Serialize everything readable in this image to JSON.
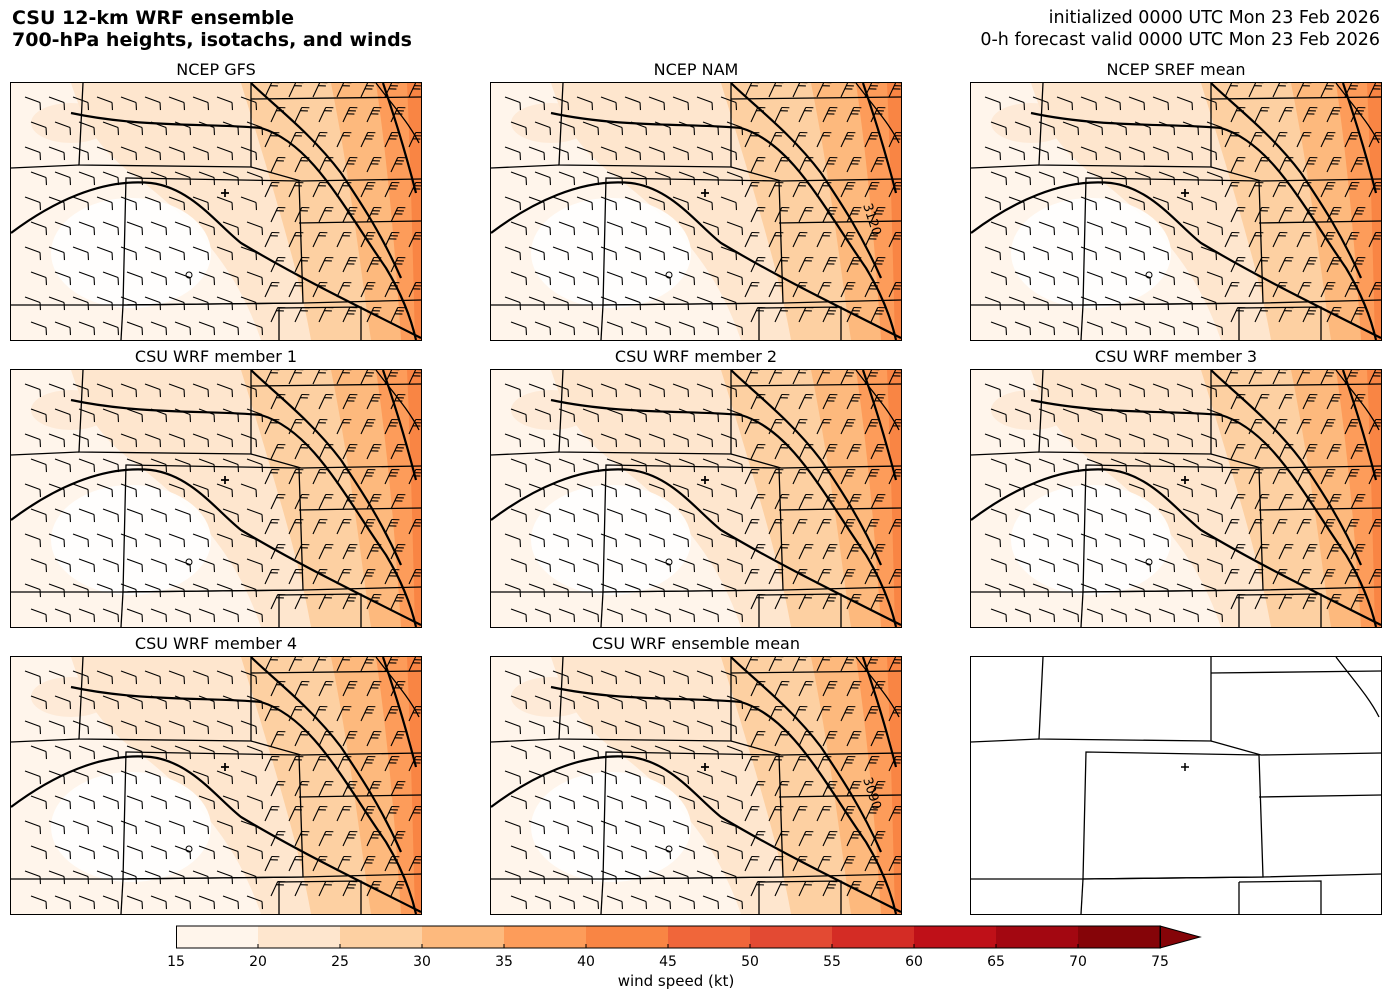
{
  "header": {
    "title_line1": "CSU 12-km WRF ensemble",
    "title_line2": "700-hPa heights, isotachs, and winds",
    "init_line": "initialized 0000 UTC Mon 23 Feb 2026",
    "valid_line": "0-h forecast valid 0000 UTC Mon 23 Feb 2026"
  },
  "panels": [
    {
      "title": "NCEP GFS",
      "contour_label": ""
    },
    {
      "title": "NCEP NAM",
      "contour_label": "3120"
    },
    {
      "title": "NCEP SREF mean",
      "contour_label": ""
    },
    {
      "title": "CSU WRF member 1",
      "contour_label": ""
    },
    {
      "title": "CSU WRF member 2",
      "contour_label": ""
    },
    {
      "title": "CSU WRF member 3",
      "contour_label": ""
    },
    {
      "title": "CSU WRF member 4",
      "contour_label": ""
    },
    {
      "title": "CSU WRF ensemble mean",
      "contour_label": "3090"
    },
    {
      "title": "",
      "contour_label": ""
    }
  ],
  "colorbar": {
    "label": "wind speed (kt)",
    "ticks": [
      "15",
      "20",
      "25",
      "30",
      "35",
      "40",
      "45",
      "50",
      "55",
      "60",
      "65",
      "70",
      "75"
    ],
    "colors": [
      "#fff5eb",
      "#fee6ce",
      "#fdd0a2",
      "#fdb97d",
      "#fd9c5a",
      "#f98544",
      "#f0663a",
      "#e34a33",
      "#d42c25",
      "#bf1018",
      "#a30711",
      "#850408"
    ],
    "extend": "max"
  }
}
